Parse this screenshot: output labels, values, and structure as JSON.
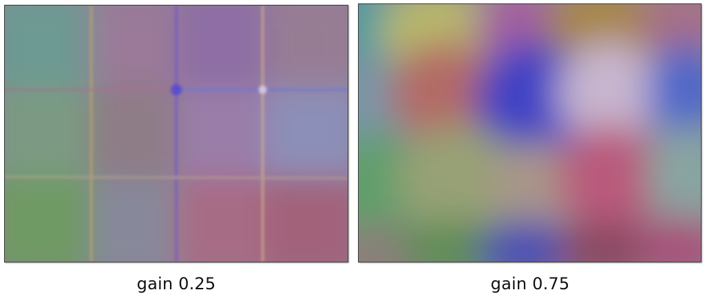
{
  "panels": [
    {
      "label": "gain 0.25",
      "gain": 0.25,
      "style": "soft tinted grid with light seams"
    },
    {
      "label": "gain 0.75",
      "gain": 0.75,
      "style": "blurred colour blobs"
    }
  ],
  "colors": {
    "teal": "#5f9a96",
    "olive": "#a7a65a",
    "purple": "#8a5da0",
    "blue": "#4a52c8",
    "lavender": "#b9acc6",
    "rose": "#b75d7c",
    "green": "#6f9b66",
    "salmon": "#a96a70",
    "mauve": "#8b7398",
    "slate": "#7d8aa3",
    "gold": "#9a7a43"
  }
}
